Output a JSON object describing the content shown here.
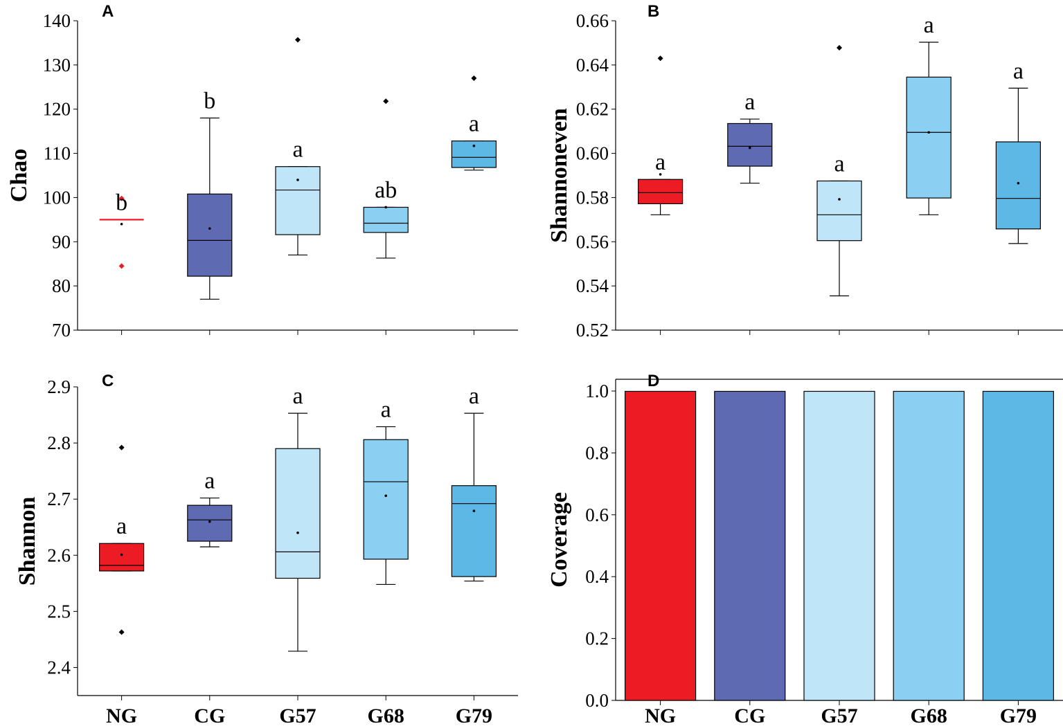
{
  "chart_data": [
    {
      "panel": "A",
      "type": "box",
      "ylabel": "Chao",
      "ylim": [
        70,
        140
      ],
      "yticks": [
        70,
        80,
        90,
        100,
        110,
        120,
        130,
        140
      ],
      "yticklabels": [
        "70",
        "80",
        "90",
        "100",
        "110",
        "120",
        "130",
        "140"
      ],
      "categories": [
        "NG",
        "CG",
        "G57",
        "G68",
        "G79"
      ],
      "show_xticklabels": false,
      "boxes": [
        {
          "group": "NG",
          "color": "#ED1C24",
          "median": 95,
          "q1": 95,
          "q3": 95,
          "mean": 94,
          "whisker_low": null,
          "whisker_high": null,
          "outliers": [
            99.8,
            84.5
          ],
          "sig": "b"
        },
        {
          "group": "CG",
          "color": "#5E6BB2",
          "median": 90.3,
          "q1": 82.2,
          "q3": 100.8,
          "mean": 93,
          "whisker_low": 77,
          "whisker_high": 118,
          "outliers": [],
          "sig": "b"
        },
        {
          "group": "G57",
          "color": "#BFE5F9",
          "median": 101.7,
          "q1": 91.6,
          "q3": 107,
          "mean": 104,
          "whisker_low": 87,
          "whisker_high": null,
          "outliers": [
            135.7
          ],
          "sig": "a"
        },
        {
          "group": "G68",
          "color": "#8BD0F2",
          "median": 94.2,
          "q1": 92.1,
          "q3": 97.8,
          "mean": 97.8,
          "whisker_low": 86.3,
          "whisker_high": null,
          "outliers": [
            121.8
          ],
          "sig": "ab"
        },
        {
          "group": "G79",
          "color": "#5DB8E6",
          "median": 109.1,
          "q1": 106.8,
          "q3": 112.8,
          "mean": 111.7,
          "whisker_low": 106.2,
          "whisker_high": null,
          "outliers": [
            127
          ],
          "sig": "a"
        }
      ]
    },
    {
      "panel": "B",
      "type": "box",
      "ylabel": "Shannoneven",
      "ylim": [
        0.52,
        0.66
      ],
      "yticks": [
        0.52,
        0.54,
        0.56,
        0.58,
        0.6,
        0.62,
        0.64,
        0.66
      ],
      "yticklabels": [
        "0.52",
        "0.54",
        "0.56",
        "0.58",
        "0.60",
        "0.62",
        "0.64",
        "0.66"
      ],
      "categories": [
        "NG",
        "CG",
        "G57",
        "G68",
        "G79"
      ],
      "show_xticklabels": false,
      "boxes": [
        {
          "group": "NG",
          "color": "#ED1C24",
          "median": 0.5822,
          "q1": 0.5772,
          "q3": 0.5882,
          "mean": 0.5905,
          "whisker_low": 0.5722,
          "whisker_high": null,
          "outliers": [
            0.643
          ],
          "sig": "a"
        },
        {
          "group": "CG",
          "color": "#5E6BB2",
          "median": 0.6032,
          "q1": 0.5942,
          "q3": 0.6135,
          "mean": 0.6025,
          "whisker_low": 0.5865,
          "whisker_high": 0.6155,
          "outliers": [],
          "sig": "a"
        },
        {
          "group": "G57",
          "color": "#BFE5F9",
          "median": 0.5722,
          "q1": 0.5605,
          "q3": 0.5875,
          "mean": 0.5792,
          "whisker_low": 0.5355,
          "whisker_high": null,
          "outliers": [
            0.6478
          ],
          "sig": "a"
        },
        {
          "group": "G68",
          "color": "#8BD0F2",
          "median": 0.6095,
          "q1": 0.5798,
          "q3": 0.6345,
          "mean": 0.6095,
          "whisker_low": 0.5722,
          "whisker_high": 0.6503,
          "outliers": [],
          "sig": "a"
        },
        {
          "group": "G79",
          "color": "#5DB8E6",
          "median": 0.5796,
          "q1": 0.5658,
          "q3": 0.6052,
          "mean": 0.5865,
          "whisker_low": 0.5592,
          "whisker_high": 0.6295,
          "outliers": [],
          "sig": "a"
        }
      ]
    },
    {
      "panel": "C",
      "type": "box",
      "ylabel": "Shannon",
      "ylim": [
        2.35,
        2.9
      ],
      "yticks": [
        2.4,
        2.5,
        2.6,
        2.7,
        2.8,
        2.9
      ],
      "yticklabels": [
        "2.4",
        "2.5",
        "2.6",
        "2.7",
        "2.8",
        "2.9"
      ],
      "categories": [
        "NG",
        "CG",
        "G57",
        "G68",
        "G79"
      ],
      "show_xticklabels": true,
      "boxes": [
        {
          "group": "NG",
          "color": "#ED1C24",
          "median": 2.582,
          "q1": 2.572,
          "q3": 2.621,
          "mean": 2.601,
          "whisker_low": null,
          "whisker_high": null,
          "outliers": [
            2.792,
            2.463
          ],
          "sig": "a"
        },
        {
          "group": "CG",
          "color": "#5E6BB2",
          "median": 2.663,
          "q1": 2.625,
          "q3": 2.689,
          "mean": 2.66,
          "whisker_low": 2.615,
          "whisker_high": 2.702,
          "outliers": [],
          "sig": "a"
        },
        {
          "group": "G57",
          "color": "#BFE5F9",
          "median": 2.606,
          "q1": 2.559,
          "q3": 2.79,
          "mean": 2.64,
          "whisker_low": 2.429,
          "whisker_high": 2.853,
          "outliers": [],
          "sig": "a"
        },
        {
          "group": "G68",
          "color": "#8BD0F2",
          "median": 2.731,
          "q1": 2.593,
          "q3": 2.806,
          "mean": 2.706,
          "whisker_low": 2.548,
          "whisker_high": 2.829,
          "outliers": [],
          "sig": "a"
        },
        {
          "group": "G79",
          "color": "#5DB8E6",
          "median": 2.692,
          "q1": 2.562,
          "q3": 2.724,
          "mean": 2.679,
          "whisker_low": 2.554,
          "whisker_high": 2.853,
          "outliers": [],
          "sig": "a"
        }
      ]
    },
    {
      "panel": "D",
      "type": "bar",
      "ylabel": "Coverage",
      "ylim": [
        0,
        1.0
      ],
      "yticks": [
        0,
        0.2,
        0.4,
        0.6,
        0.8,
        1.0
      ],
      "yticklabels": [
        "0.0",
        "0.2",
        "0.4",
        "0.6",
        "0.8",
        "1.0"
      ],
      "categories": [
        "NG",
        "CG",
        "G57",
        "G68",
        "G79"
      ],
      "show_xticklabels": true,
      "values": [
        0.999,
        0.999,
        0.999,
        0.999,
        0.999
      ],
      "colors": [
        "#ED1C24",
        "#5E6BB2",
        "#BFE5F9",
        "#8BD0F2",
        "#5DB8E6"
      ]
    }
  ]
}
